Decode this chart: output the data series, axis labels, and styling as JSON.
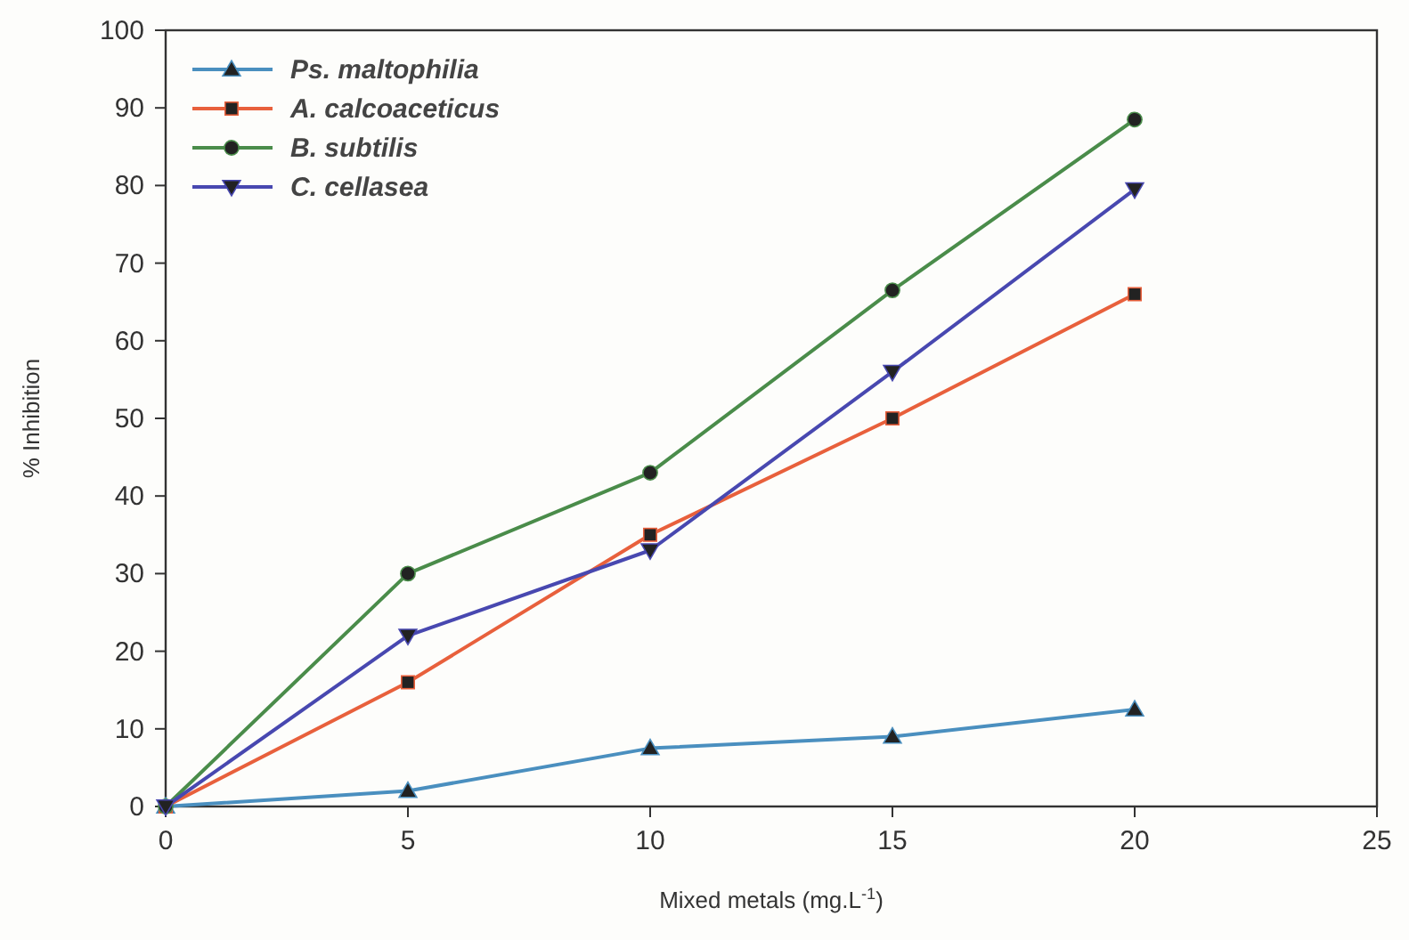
{
  "chart_data": {
    "type": "line",
    "xlabel": "Mixed metals (mg.L$^{-1}$)",
    "ylabel": "% Inhibition",
    "x": [
      0,
      5,
      10,
      15,
      20
    ],
    "xlim": [
      0,
      25
    ],
    "xticks": [
      0,
      5,
      10,
      15,
      20,
      25
    ],
    "ylim": [
      0,
      100
    ],
    "yticks": [
      0,
      10,
      20,
      30,
      40,
      50,
      60,
      70,
      80,
      90,
      100
    ],
    "grid": false,
    "legend": "top left",
    "series": [
      {
        "name": "Ps. maltophilia",
        "color": "#4a8fbf",
        "marker": "triangle",
        "values": [
          0,
          2,
          7.5,
          9,
          12.5
        ]
      },
      {
        "name": "A. calcoaceticus",
        "color": "#e8603c",
        "marker": "square",
        "values": [
          0,
          16,
          35,
          50,
          66
        ]
      },
      {
        "name": "B. subtilis",
        "color": "#4a8c4a",
        "marker": "circle",
        "values": [
          0,
          30,
          43,
          66.5,
          88.5
        ]
      },
      {
        "name": "C. cellasea",
        "color": "#4848b0",
        "marker": "triangle-down",
        "values": [
          0,
          22,
          33,
          56,
          79.5
        ]
      }
    ]
  }
}
